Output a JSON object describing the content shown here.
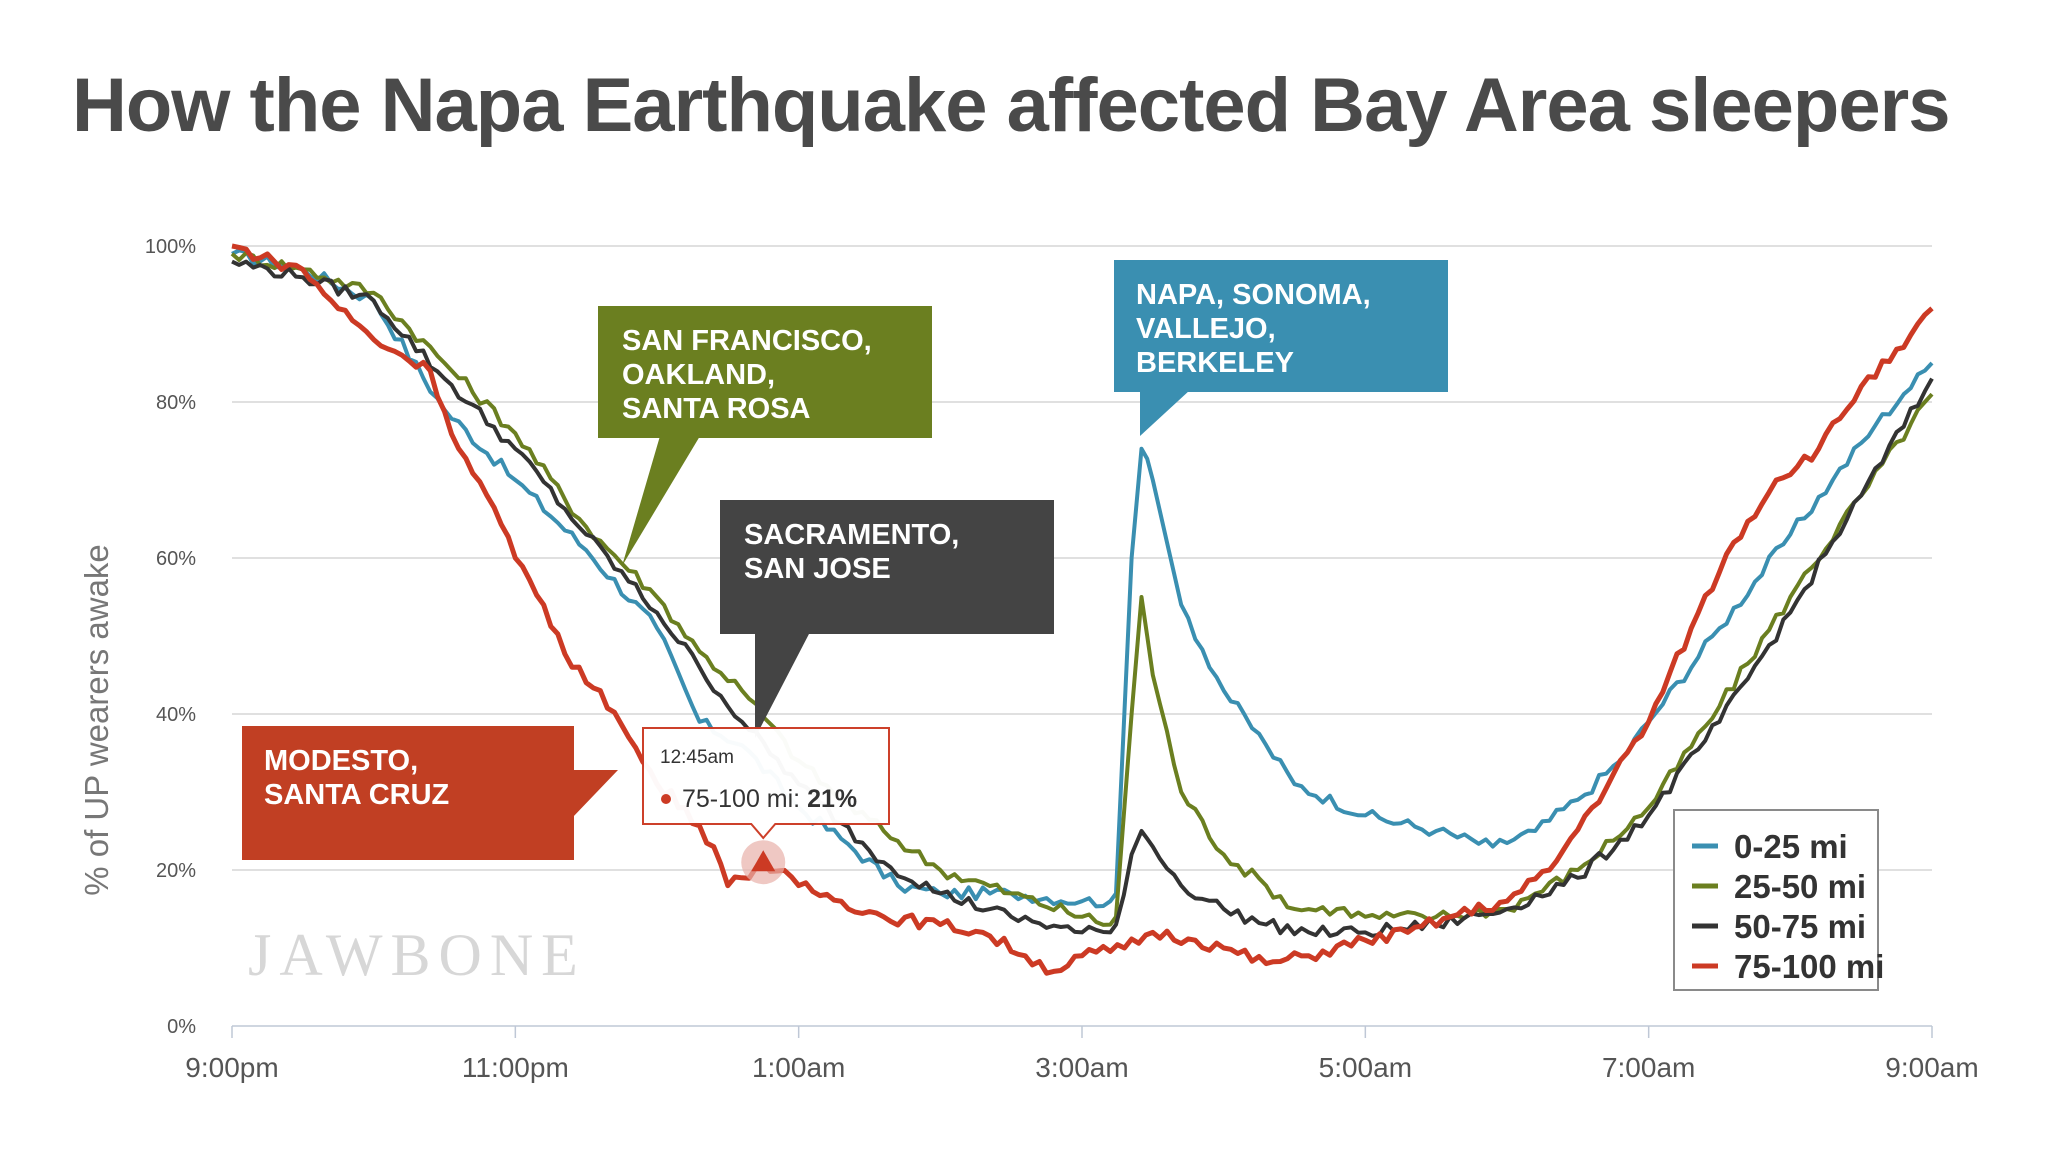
{
  "title": "How the Napa Earthquake affected Bay Area sleepers",
  "chart_data": {
    "type": "line",
    "title": "How the Napa Earthquake affected Bay Area sleepers",
    "xlabel": "",
    "ylabel": "% of UP wearers awake",
    "x_unit": "hours since 9:00pm",
    "xlim": [
      0,
      12
    ],
    "ylim": [
      0,
      100
    ],
    "x_ticks": [
      {
        "v": 0,
        "label": "9:00pm"
      },
      {
        "v": 2,
        "label": "11:00pm"
      },
      {
        "v": 4,
        "label": "1:00am"
      },
      {
        "v": 6,
        "label": "3:00am"
      },
      {
        "v": 8,
        "label": "5:00am"
      },
      {
        "v": 10,
        "label": "7:00am"
      },
      {
        "v": 12,
        "label": "9:00am"
      }
    ],
    "y_ticks": [
      {
        "v": 0,
        "label": "0%"
      },
      {
        "v": 20,
        "label": "20%"
      },
      {
        "v": 40,
        "label": "40%"
      },
      {
        "v": 60,
        "label": "60%"
      },
      {
        "v": 80,
        "label": "80%"
      },
      {
        "v": 100,
        "label": "100%"
      }
    ],
    "legend_position": "bottom-right",
    "series": [
      {
        "name": "0-25 mi",
        "color": "#3a8fb1",
        "points": [
          [
            0,
            99
          ],
          [
            0.5,
            97
          ],
          [
            1,
            93
          ],
          [
            1.5,
            79
          ],
          [
            2,
            70
          ],
          [
            2.5,
            61
          ],
          [
            3,
            51
          ],
          [
            3.3,
            39
          ],
          [
            3.6,
            36
          ],
          [
            4,
            28
          ],
          [
            4.3,
            24
          ],
          [
            4.7,
            18
          ],
          [
            5,
            17
          ],
          [
            5.5,
            17
          ],
          [
            6,
            16
          ],
          [
            6.2,
            16
          ],
          [
            6.24,
            17
          ],
          [
            6.35,
            60
          ],
          [
            6.42,
            74
          ],
          [
            6.5,
            70
          ],
          [
            6.7,
            54
          ],
          [
            7,
            43
          ],
          [
            7.3,
            36
          ],
          [
            7.5,
            31
          ],
          [
            8,
            27
          ],
          [
            8.5,
            25
          ],
          [
            8.9,
            23
          ],
          [
            9.2,
            25
          ],
          [
            9.5,
            29
          ],
          [
            9.8,
            34
          ],
          [
            10,
            39
          ],
          [
            10.5,
            51
          ],
          [
            11,
            63
          ],
          [
            11.3,
            70
          ],
          [
            11.6,
            77
          ],
          [
            11.8,
            81
          ],
          [
            12,
            85
          ]
        ]
      },
      {
        "name": "25-50 mi",
        "color": "#6b7f20",
        "points": [
          [
            0,
            99
          ],
          [
            0.5,
            97
          ],
          [
            1,
            94
          ],
          [
            1.5,
            85
          ],
          [
            2,
            76
          ],
          [
            2.5,
            64
          ],
          [
            3,
            55
          ],
          [
            3.3,
            48
          ],
          [
            3.6,
            43
          ],
          [
            4,
            34
          ],
          [
            4.3,
            29
          ],
          [
            4.6,
            25
          ],
          [
            5,
            20
          ],
          [
            5.5,
            17
          ],
          [
            6,
            14
          ],
          [
            6.2,
            13
          ],
          [
            6.24,
            14
          ],
          [
            6.35,
            40
          ],
          [
            6.42,
            55
          ],
          [
            6.5,
            45
          ],
          [
            6.7,
            30
          ],
          [
            7,
            22
          ],
          [
            7.3,
            18
          ],
          [
            7.5,
            15
          ],
          [
            7.8,
            15
          ],
          [
            8,
            14
          ],
          [
            8.5,
            14
          ],
          [
            9,
            15
          ],
          [
            9.5,
            20
          ],
          [
            10,
            28
          ],
          [
            10.5,
            41
          ],
          [
            11,
            55
          ],
          [
            11.5,
            68
          ],
          [
            12,
            81
          ]
        ]
      },
      {
        "name": "50-75 mi",
        "color": "#333333",
        "points": [
          [
            0,
            98
          ],
          [
            0.5,
            96
          ],
          [
            1,
            93
          ],
          [
            1.5,
            83
          ],
          [
            2,
            74
          ],
          [
            2.5,
            63
          ],
          [
            3,
            53
          ],
          [
            3.3,
            46
          ],
          [
            3.6,
            39
          ],
          [
            4,
            31
          ],
          [
            4.3,
            26
          ],
          [
            4.6,
            21
          ],
          [
            5,
            17
          ],
          [
            5.5,
            14
          ],
          [
            6,
            12
          ],
          [
            6.2,
            12
          ],
          [
            6.24,
            13
          ],
          [
            6.35,
            22
          ],
          [
            6.42,
            25
          ],
          [
            6.5,
            23
          ],
          [
            6.7,
            18
          ],
          [
            7,
            15
          ],
          [
            7.3,
            13
          ],
          [
            7.6,
            12
          ],
          [
            8,
            12
          ],
          [
            8.5,
            13
          ],
          [
            9,
            15
          ],
          [
            9.5,
            19
          ],
          [
            10,
            27
          ],
          [
            10.5,
            39
          ],
          [
            11,
            53
          ],
          [
            11.5,
            68
          ],
          [
            12,
            83
          ]
        ]
      },
      {
        "name": "75-100 mi",
        "color": "#cc3a24",
        "points": [
          [
            0,
            100
          ],
          [
            0.3,
            98
          ],
          [
            0.5,
            97
          ],
          [
            0.7,
            93
          ],
          [
            1,
            88
          ],
          [
            1.2,
            86
          ],
          [
            1.4,
            84
          ],
          [
            1.6,
            74
          ],
          [
            1.8,
            68
          ],
          [
            2,
            60
          ],
          [
            2.2,
            54
          ],
          [
            2.4,
            46
          ],
          [
            2.6,
            43
          ],
          [
            2.8,
            37
          ],
          [
            3,
            31
          ],
          [
            3.2,
            28
          ],
          [
            3.4,
            23
          ],
          [
            3.5,
            18
          ],
          [
            3.6,
            19
          ],
          [
            3.75,
            21
          ],
          [
            4,
            18
          ],
          [
            4.3,
            16
          ],
          [
            4.6,
            14
          ],
          [
            5,
            13
          ],
          [
            5.3,
            12
          ],
          [
            5.6,
            9
          ],
          [
            5.8,
            7
          ],
          [
            6,
            9
          ],
          [
            6.3,
            10
          ],
          [
            6.5,
            12
          ],
          [
            6.8,
            11
          ],
          [
            7,
            10
          ],
          [
            7.3,
            8
          ],
          [
            7.6,
            9
          ],
          [
            8,
            11
          ],
          [
            8.3,
            12
          ],
          [
            8.6,
            14
          ],
          [
            9,
            16
          ],
          [
            9.3,
            20
          ],
          [
            9.6,
            28
          ],
          [
            10,
            39
          ],
          [
            10.3,
            51
          ],
          [
            10.6,
            62
          ],
          [
            10.9,
            70
          ],
          [
            11.2,
            74
          ],
          [
            11.5,
            82
          ],
          [
            11.8,
            87
          ],
          [
            12,
            92
          ]
        ]
      }
    ],
    "annotations": [
      {
        "lines": [
          "SAN FRANCISCO,",
          "OAKLAND,",
          "SANTA ROSA"
        ],
        "color": "#6b7f20"
      },
      {
        "lines": [
          "NAPA, SONOMA,",
          "VALLEJO,",
          "BERKELEY"
        ],
        "color": "#3a8fb1"
      },
      {
        "lines": [
          "SACRAMENTO,",
          "SAN JOSE"
        ],
        "color": "#444444"
      },
      {
        "lines": [
          "MODESTO,",
          "SANTA CRUZ"
        ],
        "color": "#c13f23"
      }
    ],
    "tooltip": {
      "time": "12:45am",
      "series": "75-100 mi",
      "value_label": "21%",
      "x": 3.75,
      "y": 21
    }
  },
  "watermark": "JAWBONE"
}
